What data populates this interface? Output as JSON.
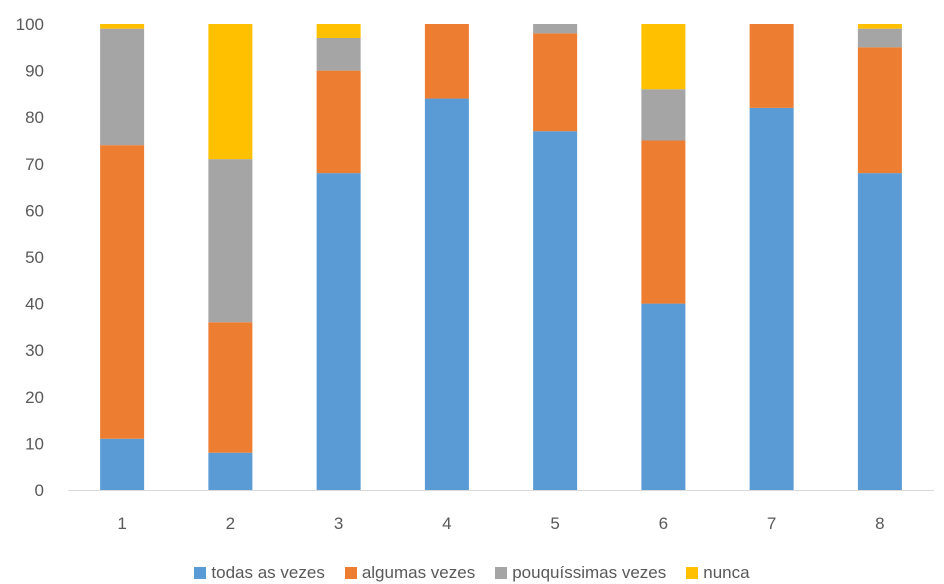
{
  "chart_data": {
    "type": "bar",
    "stacked": true,
    "categories": [
      "1",
      "2",
      "3",
      "4",
      "5",
      "6",
      "7",
      "8"
    ],
    "series": [
      {
        "name": "todas as vezes",
        "color": "#5B9BD5",
        "values": [
          11,
          8,
          68,
          84,
          77,
          40,
          82,
          68
        ]
      },
      {
        "name": "algumas vezes",
        "color": "#ED7D31",
        "values": [
          63,
          28,
          22,
          16,
          21,
          35,
          18,
          27
        ]
      },
      {
        "name": "pouquíssimas vezes",
        "color": "#A5A5A5",
        "values": [
          25,
          35,
          7,
          0,
          2,
          11,
          0,
          4
        ]
      },
      {
        "name": "nunca",
        "color": "#FFC000",
        "values": [
          1,
          29,
          3,
          0,
          0,
          14,
          0,
          1
        ]
      }
    ],
    "y_ticks": [
      "0",
      "10",
      "20",
      "30",
      "40",
      "50",
      "60",
      "70",
      "80",
      "90",
      "100"
    ],
    "ylim": [
      0,
      100
    ],
    "grid": false,
    "legend_position": "bottom"
  }
}
